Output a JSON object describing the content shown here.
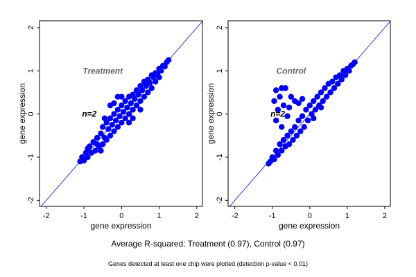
{
  "caption": "Average R-squared: Treatment (0.97), Control (0.97)",
  "footnote": "Genes detected at least one chip were plotted (detection p-value < 0.01)",
  "chart_data": [
    {
      "type": "scatter",
      "title": "Treatment",
      "annotation": "n=2",
      "xlabel": "gene expression",
      "ylabel": "gene expression",
      "xlim": [
        -2.18,
        2.15
      ],
      "ylim": [
        -2.14,
        2.16
      ],
      "xticks": [
        -2,
        -1,
        0,
        1,
        2
      ],
      "yticks": [
        -2,
        -1,
        0,
        1,
        2
      ],
      "point_color": "#0000ff",
      "reference_line": "y = x",
      "grid": false,
      "points": [
        [
          -1.1,
          -1.1
        ],
        [
          -1.05,
          -1.0
        ],
        [
          -1.0,
          -1.08
        ],
        [
          -0.95,
          -0.9
        ],
        [
          -0.9,
          -1.0
        ],
        [
          -0.85,
          -0.75
        ],
        [
          -0.8,
          -0.9
        ],
        [
          -0.75,
          -0.65
        ],
        [
          -0.7,
          -0.85
        ],
        [
          -0.65,
          -0.55
        ],
        [
          -0.6,
          -0.75
        ],
        [
          -0.55,
          -0.45
        ],
        [
          -0.5,
          -0.7
        ],
        [
          -0.5,
          -0.3
        ],
        [
          -0.45,
          -0.55
        ],
        [
          -0.4,
          -0.2
        ],
        [
          -0.4,
          -0.6
        ],
        [
          -0.35,
          -0.35
        ],
        [
          -0.3,
          -0.1
        ],
        [
          -0.3,
          -0.5
        ],
        [
          -0.25,
          -0.25
        ],
        [
          -0.2,
          0.0
        ],
        [
          -0.2,
          -0.4
        ],
        [
          -0.15,
          -0.15
        ],
        [
          -0.1,
          0.1
        ],
        [
          -0.1,
          -0.3
        ],
        [
          -0.05,
          -0.05
        ],
        [
          0,
          0.2
        ],
        [
          0,
          -0.2
        ],
        [
          0.05,
          0.05
        ],
        [
          0.1,
          0.3
        ],
        [
          0.1,
          -0.1
        ],
        [
          0.15,
          0.15
        ],
        [
          0.2,
          0.4
        ],
        [
          0.2,
          0.0
        ],
        [
          0.25,
          0.25
        ],
        [
          0.3,
          0.45
        ],
        [
          0.3,
          0.1
        ],
        [
          0.35,
          0.35
        ],
        [
          0.4,
          0.55
        ],
        [
          0.4,
          0.2
        ],
        [
          0.45,
          0.45
        ],
        [
          0.5,
          0.65
        ],
        [
          0.5,
          0.3
        ],
        [
          0.55,
          0.55
        ],
        [
          0.6,
          0.75
        ],
        [
          0.6,
          0.4
        ],
        [
          0.65,
          0.65
        ],
        [
          0.7,
          0.8
        ],
        [
          0.7,
          0.5
        ],
        [
          0.75,
          0.72
        ],
        [
          0.8,
          0.9
        ],
        [
          0.8,
          0.6
        ],
        [
          0.85,
          0.85
        ],
        [
          0.9,
          0.95
        ],
        [
          0.9,
          0.75
        ],
        [
          0.95,
          0.92
        ],
        [
          1.0,
          1.05
        ],
        [
          1.0,
          0.85
        ],
        [
          1.05,
          1.0
        ],
        [
          1.1,
          1.12
        ],
        [
          1.15,
          1.1
        ],
        [
          1.2,
          1.2
        ],
        [
          1.25,
          1.25
        ],
        [
          -0.9,
          -0.8
        ],
        [
          -0.65,
          -0.7
        ],
        [
          -0.1,
          0.4
        ],
        [
          -0.3,
          0.2
        ],
        [
          0.3,
          -0.1
        ],
        [
          -0.55,
          -0.85
        ],
        [
          -0.2,
          0.25
        ],
        [
          0.0,
          0.4
        ],
        [
          0.2,
          -0.2
        ],
        [
          -0.45,
          -0.1
        ],
        [
          0.5,
          0.1
        ]
      ]
    },
    {
      "type": "scatter",
      "title": "Control",
      "annotation": "n=2",
      "xlabel": "gene expression",
      "ylabel": "gene expression",
      "xlim": [
        -2.18,
        2.15
      ],
      "ylim": [
        -2.14,
        2.16
      ],
      "xticks": [
        -2,
        -1,
        0,
        1,
        2
      ],
      "yticks": [
        -2,
        -1,
        0,
        1,
        2
      ],
      "point_color": "#0000ff",
      "reference_line": "y = x",
      "grid": false,
      "points": [
        [
          -1.1,
          -1.15
        ],
        [
          -1.05,
          -1.1
        ],
        [
          -1.0,
          -1.0
        ],
        [
          -0.95,
          -1.05
        ],
        [
          -0.9,
          -0.85
        ],
        [
          -0.85,
          -0.95
        ],
        [
          -0.8,
          -0.7
        ],
        [
          -0.75,
          -0.85
        ],
        [
          -0.7,
          -0.6
        ],
        [
          -0.65,
          -0.75
        ],
        [
          -0.6,
          -0.5
        ],
        [
          -0.55,
          -0.7
        ],
        [
          -0.5,
          -0.4
        ],
        [
          -0.45,
          -0.6
        ],
        [
          -0.4,
          -0.3
        ],
        [
          -0.35,
          -0.5
        ],
        [
          -0.3,
          -0.15
        ],
        [
          -0.25,
          -0.4
        ],
        [
          -0.2,
          -0.05
        ],
        [
          -0.15,
          -0.3
        ],
        [
          -0.1,
          0.1
        ],
        [
          -0.05,
          -0.15
        ],
        [
          0,
          0.2
        ],
        [
          0.05,
          0.0
        ],
        [
          0.1,
          0.3
        ],
        [
          0.15,
          0.1
        ],
        [
          0.2,
          0.4
        ],
        [
          0.25,
          0.2
        ],
        [
          0.3,
          0.5
        ],
        [
          0.35,
          0.3
        ],
        [
          0.4,
          0.6
        ],
        [
          0.45,
          0.4
        ],
        [
          0.5,
          0.7
        ],
        [
          0.55,
          0.5
        ],
        [
          0.6,
          0.75
        ],
        [
          0.65,
          0.6
        ],
        [
          0.7,
          0.85
        ],
        [
          0.75,
          0.7
        ],
        [
          0.8,
          0.9
        ],
        [
          0.85,
          0.8
        ],
        [
          0.9,
          1.0
        ],
        [
          0.95,
          0.9
        ],
        [
          1.0,
          1.05
        ],
        [
          1.05,
          1.0
        ],
        [
          1.1,
          1.12
        ],
        [
          1.15,
          1.15
        ],
        [
          1.2,
          1.2
        ],
        [
          -0.9,
          0.55
        ],
        [
          -0.75,
          0.6
        ],
        [
          -0.65,
          0.6
        ],
        [
          -0.95,
          0.3
        ],
        [
          -0.8,
          0.4
        ],
        [
          -0.5,
          0.4
        ],
        [
          -0.85,
          0.1
        ],
        [
          -0.7,
          0.2
        ],
        [
          -0.55,
          0.15
        ],
        [
          -0.9,
          -0.15
        ],
        [
          -0.75,
          -0.3
        ],
        [
          -0.6,
          -0.05
        ],
        [
          -0.4,
          0.3
        ],
        [
          -0.3,
          0.25
        ],
        [
          0.1,
          -0.1
        ],
        [
          -0.2,
          0.35
        ],
        [
          0.3,
          0.15
        ]
      ]
    }
  ]
}
